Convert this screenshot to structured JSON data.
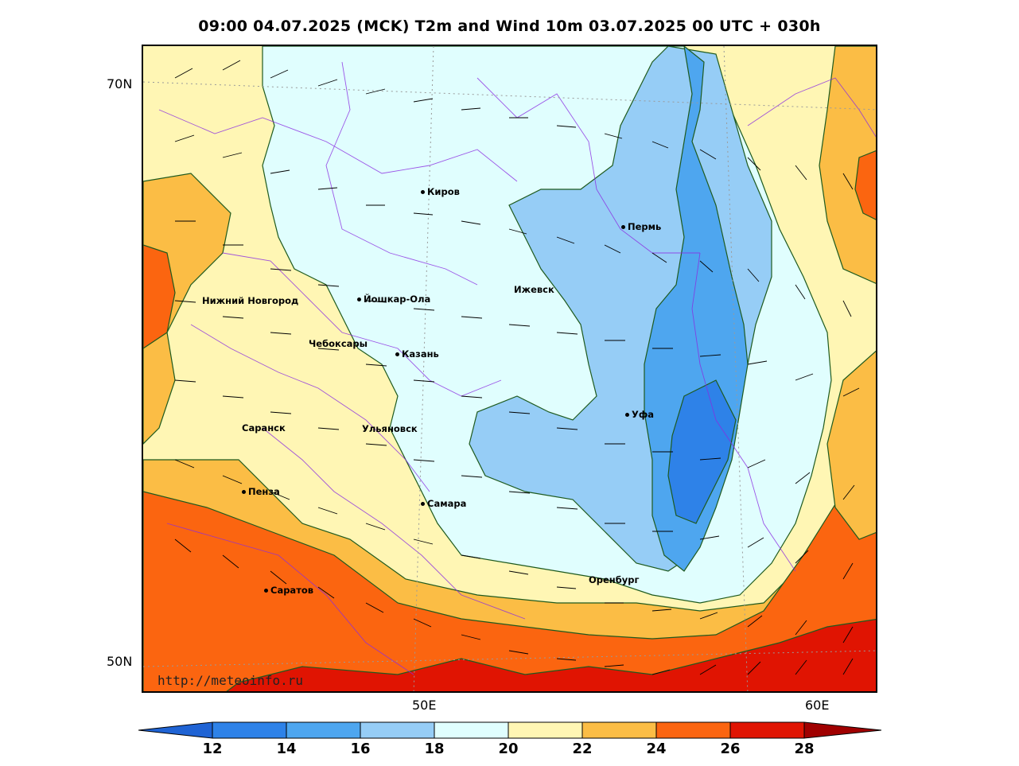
{
  "title": "09:00 04.07.2025 (MCK) T2m and Wind 10m 03.07.2025 00 UTC + 030h",
  "axes": {
    "lat_labels": [
      "70N",
      "50N"
    ],
    "lon_labels": [
      "50E",
      "60E"
    ]
  },
  "cities": [
    {
      "name": "Киров"
    },
    {
      "name": "Пермь"
    },
    {
      "name": "Нижний Новгород"
    },
    {
      "name": "Йошкар-Ола"
    },
    {
      "name": "Ижевск"
    },
    {
      "name": "Чебоксары"
    },
    {
      "name": "Казань"
    },
    {
      "name": "Уфа"
    },
    {
      "name": "Саранск"
    },
    {
      "name": "Ульяновск"
    },
    {
      "name": "Пенза"
    },
    {
      "name": "Самара"
    },
    {
      "name": "Оренбург"
    },
    {
      "name": "Саратов"
    }
  ],
  "source": "http://meteoinfo.ru",
  "colorbar": {
    "ticks": [
      "12",
      "14",
      "16",
      "18",
      "20",
      "22",
      "24",
      "26",
      "28"
    ],
    "colors": [
      "#1f63d4",
      "#2e82e8",
      "#4ea6ef",
      "#96cdf6",
      "#e0fefe",
      "#fff6b4",
      "#fbbd45",
      "#fb6510",
      "#e01402",
      "#a00000"
    ]
  }
}
